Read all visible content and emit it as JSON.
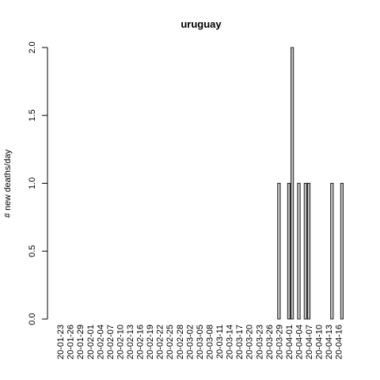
{
  "chart_data": {
    "type": "bar",
    "title": "uruguay",
    "xlabel": "",
    "ylabel": "# new deaths/day",
    "ylim": [
      0,
      2
    ],
    "yticks": [
      "0.0",
      "0.5",
      "1.0",
      "1.5",
      "2.0"
    ],
    "grid": false,
    "legend": "none",
    "bar_fill": "#bebebe",
    "bar_stroke": "#000000",
    "start_date": "2020-01-23",
    "xtick_labels": [
      "20-01-23",
      "20-01-26",
      "20-01-29",
      "20-02-01",
      "20-02-04",
      "20-02-07",
      "20-02-10",
      "20-02-13",
      "20-02-16",
      "20-02-19",
      "20-02-22",
      "20-02-25",
      "20-02-28",
      "20-03-02",
      "20-03-05",
      "20-03-08",
      "20-03-11",
      "20-03-14",
      "20-03-17",
      "20-03-20",
      "20-03-23",
      "20-03-26",
      "20-03-29",
      "20-04-01",
      "20-04-04",
      "20-04-07",
      "20-04-10",
      "20-04-13",
      "20-04-16"
    ],
    "values": [
      0,
      0,
      0,
      0,
      0,
      0,
      0,
      0,
      0,
      0,
      0,
      0,
      0,
      0,
      0,
      0,
      0,
      0,
      0,
      0,
      0,
      0,
      0,
      0,
      0,
      0,
      0,
      0,
      0,
      0,
      0,
      0,
      0,
      0,
      0,
      0,
      0,
      0,
      0,
      0,
      0,
      0,
      0,
      0,
      0,
      0,
      0,
      0,
      0,
      0,
      0,
      0,
      0,
      0,
      0,
      0,
      0,
      0,
      0,
      0,
      0,
      0,
      0,
      0,
      0,
      0,
      1,
      0,
      0,
      1,
      2,
      0,
      1,
      0,
      1,
      1,
      0,
      0,
      0,
      0,
      0,
      0,
      1,
      0,
      0,
      1
    ]
  }
}
